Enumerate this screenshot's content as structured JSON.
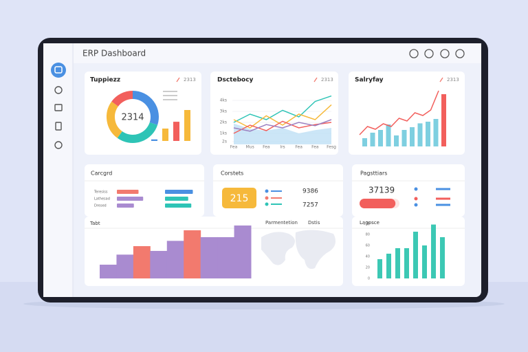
{
  "header": {
    "title": "ERP Dashboard"
  },
  "donut_card": {
    "title": "Tuppiezz",
    "badge": "2313",
    "center": "2314",
    "donut": [
      {
        "value": 30,
        "color": "#4a90e2"
      },
      {
        "value": 30,
        "color": "#2ec4b6"
      },
      {
        "value": 25,
        "color": "#f6b93b"
      },
      {
        "value": 15,
        "color": "#f25f5c"
      }
    ],
    "bars": [
      {
        "value": 5,
        "color": "#4a90e2"
      },
      {
        "value": 40,
        "color": "#f6b93b"
      },
      {
        "value": 62,
        "color": "#f25f5c"
      },
      {
        "value": 100,
        "color": "#f6b93b"
      }
    ],
    "bars_ylim": [
      0,
      100
    ]
  },
  "line_card": {
    "title": "Dsctebocy",
    "badge": "2313",
    "ylim": [
      0,
      100
    ],
    "yticks": [
      {
        "value": 80,
        "label": "4ks"
      },
      {
        "value": 60,
        "label": "3ks"
      },
      {
        "value": 40,
        "label": "2ks"
      },
      {
        "value": 20,
        "label": "1ks"
      },
      {
        "value": 5,
        "label": "2s"
      }
    ],
    "categories": [
      "Fea",
      "Mus",
      "Fea",
      "Irs",
      "Fea",
      "Fea",
      "Fesg"
    ],
    "series": [
      {
        "color": "#2ec4b6",
        "values": [
          40,
          55,
          45,
          62,
          50,
          78,
          88
        ]
      },
      {
        "color": "#f6b93b",
        "values": [
          45,
          30,
          52,
          35,
          55,
          45,
          72
        ]
      },
      {
        "color": "#f25f5c",
        "values": [
          20,
          35,
          25,
          42,
          30,
          36,
          40
        ]
      },
      {
        "color": "#9b7fc0",
        "values": [
          30,
          24,
          36,
          30,
          40,
          34,
          45
        ]
      }
    ],
    "area": {
      "color": "#bfe0f5",
      "values": [
        38,
        28,
        25,
        30,
        20,
        26,
        30
      ]
    }
  },
  "combo_card": {
    "title": "Salryfay",
    "badge": "2313",
    "ylim": [
      0,
      100
    ],
    "bars": [
      15,
      25,
      30,
      40,
      20,
      30,
      35,
      42,
      45,
      50,
      95
    ],
    "bar_color": "#7ecfe0",
    "highlight_color": "#f25f5c",
    "line": [
      15,
      30,
      25,
      35,
      30,
      45,
      40,
      55,
      50,
      60,
      95
    ],
    "line_color": "#f25f5c"
  },
  "progress_card": {
    "title": "Carcgrd",
    "rows": [
      {
        "label": "Teresiss",
        "left": 70,
        "left_color": "#f27a6e",
        "right": 90,
        "right_color": "#4a90e2"
      },
      {
        "label": "Lathesad",
        "left": 85,
        "left_color": "#a98bd0",
        "right": 75,
        "right_color": "#2ec4b6"
      },
      {
        "label": "Dresed",
        "left": 55,
        "left_color": "#a98bd0",
        "right": 85,
        "right_color": "#2ec4b6"
      }
    ]
  },
  "stats_card": {
    "title": "Corstets",
    "big": "215",
    "items": [
      "9386",
      "7257"
    ]
  },
  "pill_card": {
    "title": "Pagsttiars",
    "big": "37139",
    "progress": 90
  },
  "bottom_card": {
    "title": "Tabt",
    "map_title": "Parmentetion",
    "map_sub": "Dstis",
    "ylim": [
      0,
      100
    ],
    "bars": [
      {
        "value": 26,
        "color": "#a98bd0"
      },
      {
        "value": 45,
        "color": "#a98bd0"
      },
      {
        "value": 61,
        "color": "#f27a6e"
      },
      {
        "value": 52,
        "color": "#a98bd0"
      },
      {
        "value": 71,
        "color": "#a98bd0"
      },
      {
        "value": 91,
        "color": "#f27a6e"
      },
      {
        "value": 78,
        "color": "#a98bd0"
      },
      {
        "value": 78,
        "color": "#a98bd0"
      },
      {
        "value": 100,
        "color": "#a98bd0"
      }
    ]
  },
  "teal_card": {
    "title": "Lagpsce",
    "ylim": [
      0,
      100
    ],
    "yticks": [
      0,
      20,
      40,
      60,
      80,
      100
    ],
    "values": [
      35,
      45,
      55,
      55,
      85,
      60,
      98,
      75
    ],
    "color": "#3cc8b4"
  }
}
